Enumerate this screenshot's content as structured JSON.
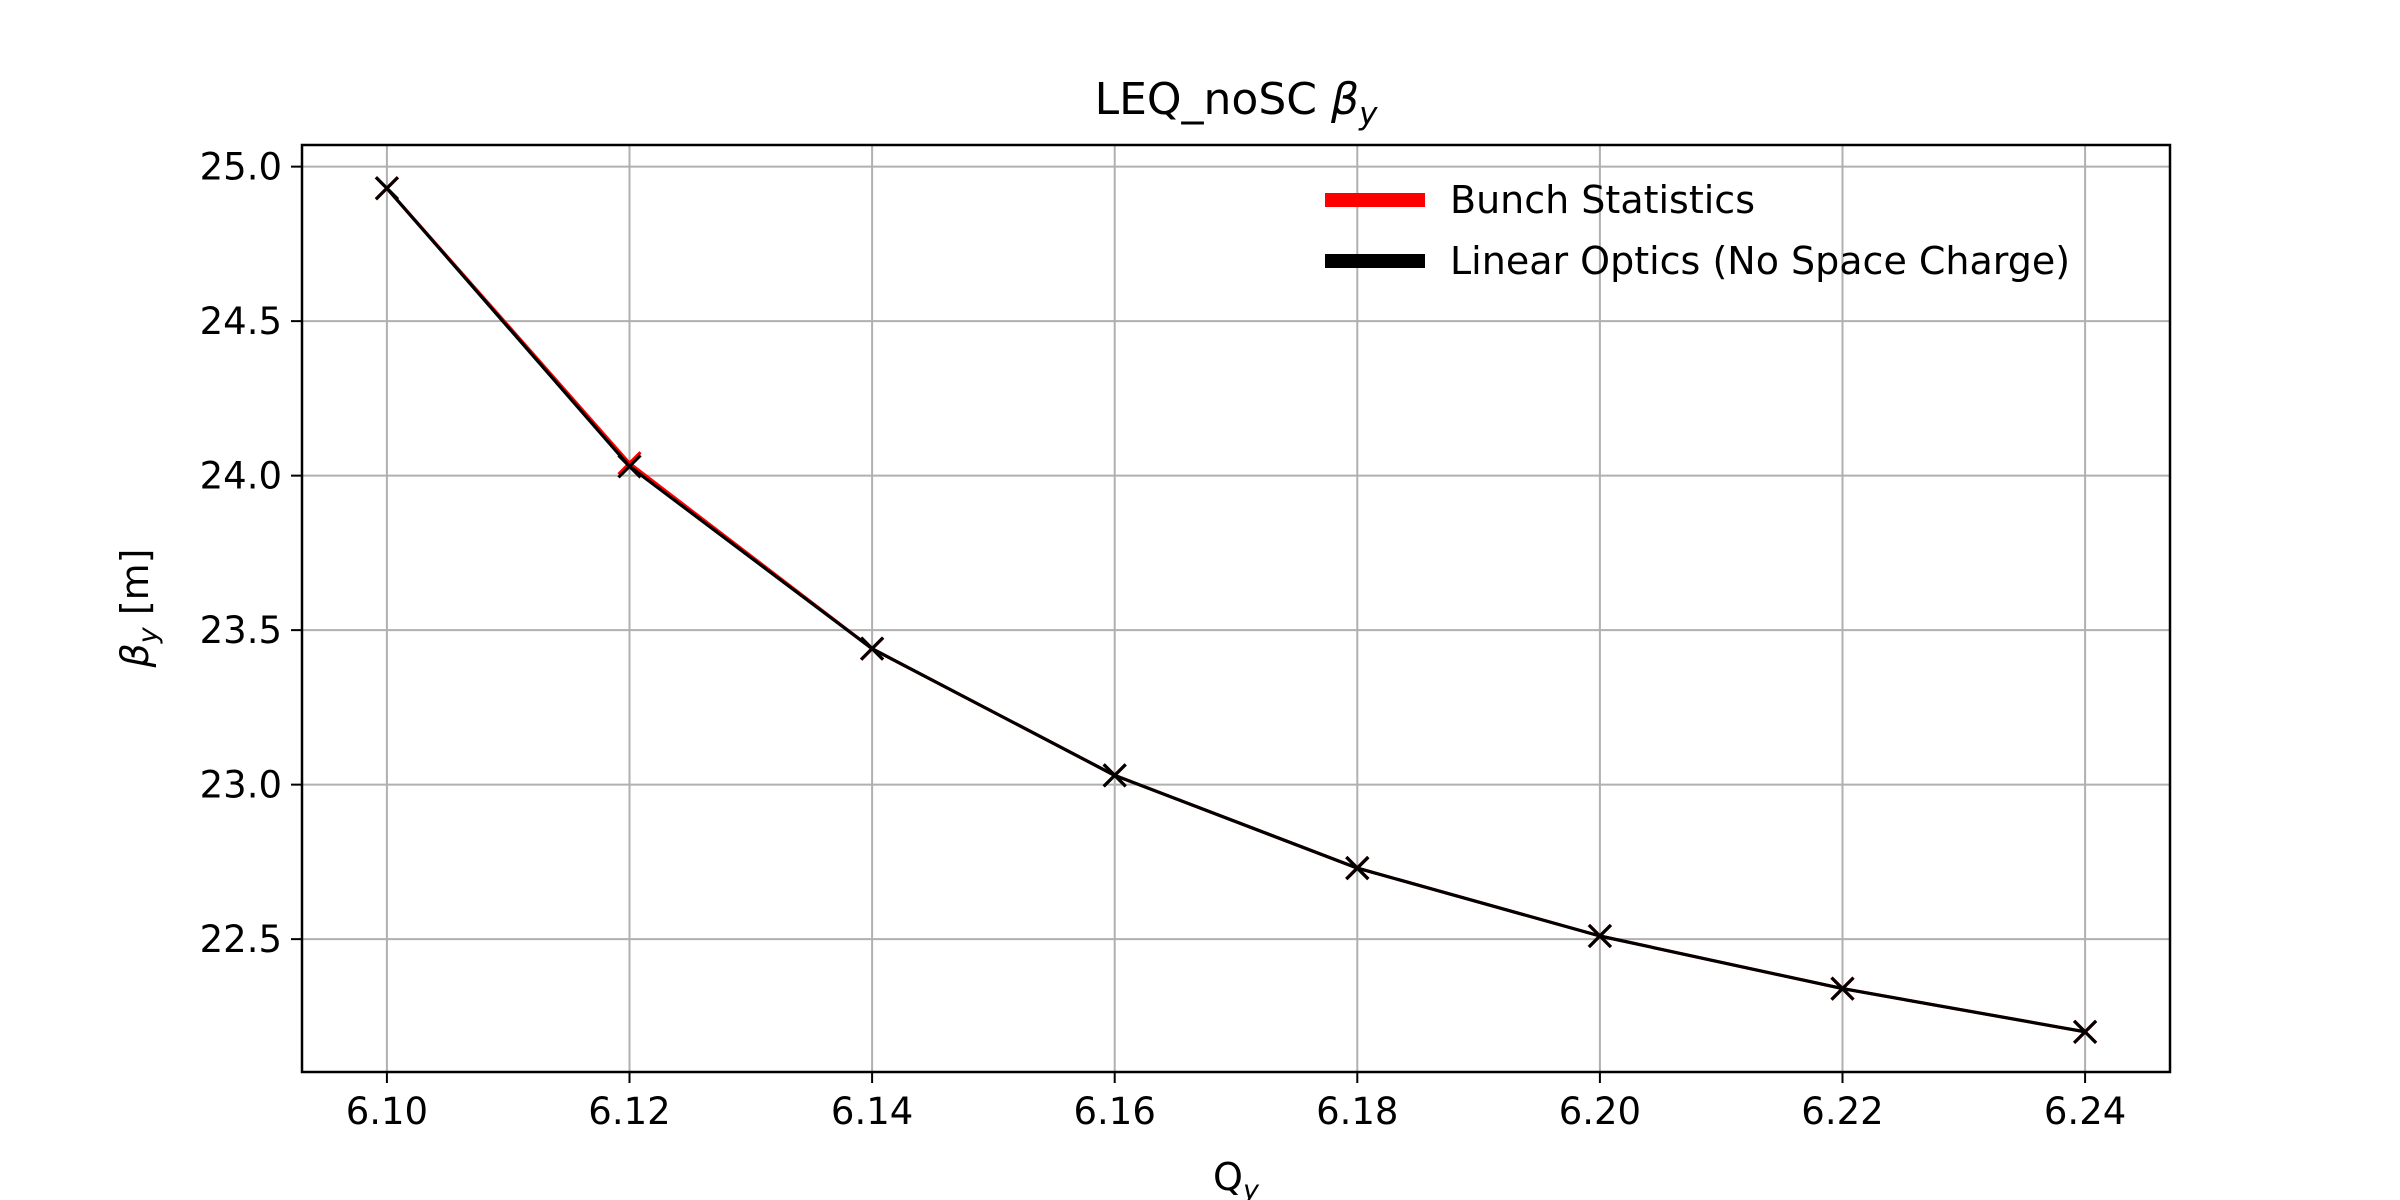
{
  "chart_data": {
    "type": "line",
    "title": "LEQ_noSC βy",
    "xlabel": "Qy",
    "ylabel": "βy [m]",
    "xlim": [
      6.093,
      6.247
    ],
    "ylim": [
      22.07,
      25.07
    ],
    "xticks": [
      6.1,
      6.12,
      6.14,
      6.16,
      6.18,
      6.2,
      6.22,
      6.24
    ],
    "xtick_labels": [
      "6.10",
      "6.12",
      "6.14",
      "6.16",
      "6.18",
      "6.20",
      "6.22",
      "6.24"
    ],
    "yticks": [
      22.5,
      23.0,
      23.5,
      24.0,
      24.5,
      25.0
    ],
    "ytick_labels": [
      "22.5",
      "23.0",
      "23.5",
      "24.0",
      "24.5",
      "25.0"
    ],
    "grid": true,
    "legend_position": "top-right",
    "series": [
      {
        "name": "Bunch Statistics",
        "color": "#ff0000",
        "marker": "x",
        "x": [
          6.1,
          6.12,
          6.14,
          6.16,
          6.18,
          6.2,
          6.22,
          6.24
        ],
        "y": [
          24.93,
          24.04,
          23.44,
          23.03,
          22.73,
          22.51,
          22.34,
          22.2
        ]
      },
      {
        "name": "Linear Optics (No Space Charge)",
        "color": "#000000",
        "marker": "x",
        "x": [
          6.1,
          6.12,
          6.14,
          6.16,
          6.18,
          6.2,
          6.22,
          6.24
        ],
        "y": [
          24.93,
          24.03,
          23.44,
          23.03,
          22.73,
          22.51,
          22.34,
          22.2
        ]
      }
    ]
  }
}
